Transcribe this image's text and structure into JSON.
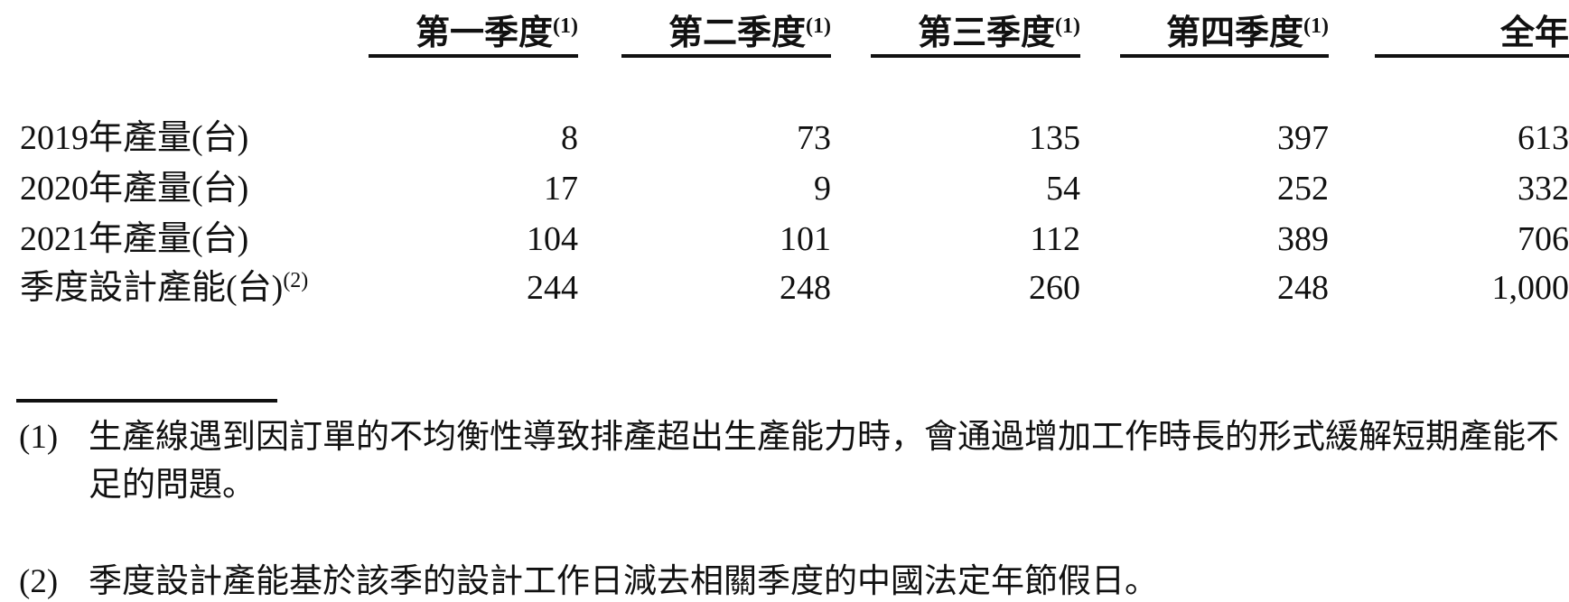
{
  "table": {
    "column_headers": [
      {
        "label": "第一季度",
        "footnote_ref": "(1)"
      },
      {
        "label": "第二季度",
        "footnote_ref": "(1)"
      },
      {
        "label": "第三季度",
        "footnote_ref": "(1)"
      },
      {
        "label": "第四季度",
        "footnote_ref": "(1)"
      },
      {
        "label": "全年",
        "footnote_ref": ""
      }
    ],
    "rows": [
      {
        "label": "2019年產量(台)",
        "footnote_ref": "",
        "values": [
          "8",
          "73",
          "135",
          "397",
          "613"
        ]
      },
      {
        "label": "2020年產量(台)",
        "footnote_ref": "",
        "values": [
          "17",
          "9",
          "54",
          "252",
          "332"
        ]
      },
      {
        "label": "2021年產量(台)",
        "footnote_ref": "",
        "values": [
          "104",
          "101",
          "112",
          "389",
          "706"
        ]
      },
      {
        "label": "季度設計產能(台)",
        "footnote_ref": "(2)",
        "values": [
          "244",
          "248",
          "260",
          "248",
          "1,000"
        ]
      }
    ]
  },
  "footnotes": [
    {
      "marker": "(1)",
      "lines": [
        "生產線遇到因訂單的不均衡性導致排產超出生產能力時，會通過增加工作時長的形式緩解短期產能不",
        "足的問題。"
      ]
    },
    {
      "marker": "(2)",
      "lines": [
        "季度設計產能基於該季的設計工作日減去相關季度的中國法定年節假日。"
      ]
    }
  ],
  "colors": {
    "text": "#111111",
    "background": "#ffffff",
    "rule": "#111111"
  }
}
